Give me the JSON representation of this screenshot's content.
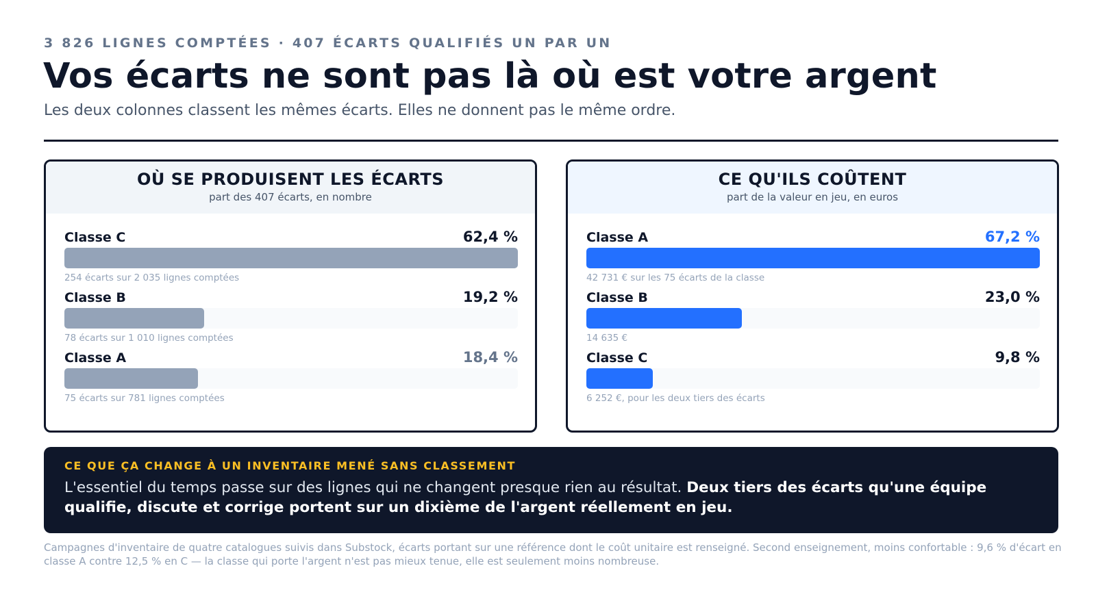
{
  "header": {
    "kicker": "3 826 LIGNES COMPTÉES · 407 ÉCARTS QUALIFIÉS UN PAR UN",
    "title": "Vos écarts ne sont pas là où est votre argent",
    "subtitle": "Les deux colonnes classent les mêmes écarts. Elles ne donnent pas le même ordre."
  },
  "chart_data": [
    {
      "type": "bar",
      "title": "OÙ SE PRODUISENT LES ÉCARTS",
      "subtitle": "part des 407 écarts, en nombre",
      "categories": [
        "Classe C",
        "Classe B",
        "Classe A"
      ],
      "values": [
        62.4,
        19.2,
        18.4
      ],
      "value_labels": [
        "62,4 %",
        "19,2 %",
        "18,4 %"
      ],
      "notes": [
        "254 écarts sur 2 035 lignes comptées",
        "78 écarts sur 1 010 lignes comptées",
        "75 écarts sur 781 lignes comptées"
      ],
      "bar_color": "#94a3b8",
      "value_colors": [
        "#0f172a",
        "#0f172a",
        "#64748b"
      ]
    },
    {
      "type": "bar",
      "title": "CE QU'ILS COÛTENT",
      "subtitle": "part de la valeur en jeu, en euros",
      "categories": [
        "Classe A",
        "Classe B",
        "Classe C"
      ],
      "values": [
        67.2,
        23.0,
        9.8
      ],
      "value_labels": [
        "67,2 %",
        "23,0 %",
        "9,8 %"
      ],
      "notes": [
        "42 731 € sur les 75 écarts de la classe",
        "14 635 €",
        "6 252 €, pour les deux tiers des écarts"
      ],
      "bar_color": "#2370ff",
      "value_colors": [
        "#2370ff",
        "#0f172a",
        "#0f172a"
      ]
    }
  ],
  "callout": {
    "kicker": "CE QUE ÇA CHANGE À UN INVENTAIRE MENÉ SANS CLASSEMENT",
    "text_plain": "L'essentiel du temps passe sur des lignes qui ne changent presque rien au résultat.",
    "text_bold": "Deux tiers des écarts qu'une équipe qualifie, discute et corrige portent sur un dixième de l'argent réellement en jeu."
  },
  "footnote": "Campagnes d'inventaire de quatre catalogues suivis dans Substock, écarts portant sur une référence dont le coût unitaire est renseigné. Second enseignement, moins confortable : 9,6 % d'écart en classe A contre 12,5 % en C — la classe qui porte l'argent n'est pas mieux tenue, elle est seulement moins nombreuse."
}
